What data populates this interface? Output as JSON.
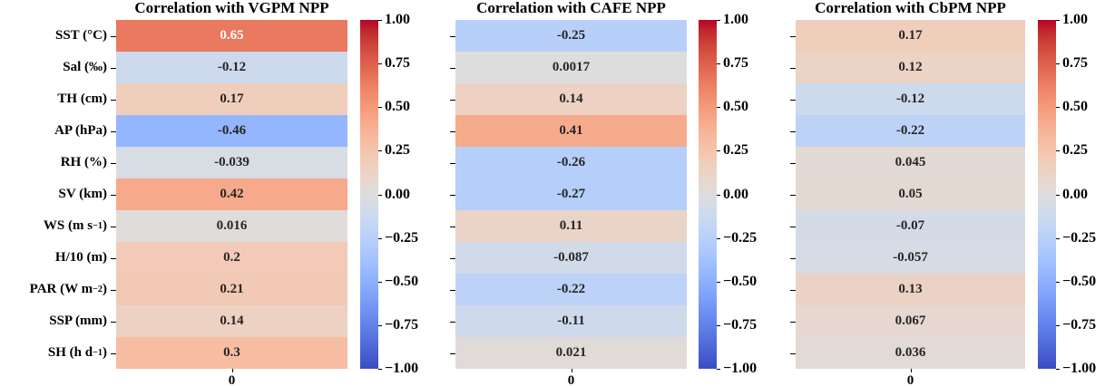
{
  "figure": {
    "background": "#ffffff",
    "text_color": "#000000",
    "annotation_dark_text": "#262626",
    "annotation_light_text": "#ffffff"
  },
  "shared": {
    "row_labels": [
      "SST (°C)",
      "Sal (‰)",
      "TH (cm)",
      "AP (hPa)",
      "RH (%)",
      "SV (km)",
      "WS (m s^{−1})",
      "H/10 (m)",
      "PAR (W m^{−2})",
      "SSP (mm)",
      "SH (h d^{−1})"
    ],
    "x_tick_label": "0",
    "colorbar_ticks": [
      "1.00",
      "0.75",
      "0.50",
      "0.25",
      "0.00",
      "−0.25",
      "−0.50",
      "−0.75",
      "−1.00"
    ],
    "colormap": "coolwarm",
    "vmin": -1,
    "vmax": 1
  },
  "chart_data": [
    {
      "type": "heatmap",
      "title": "Correlation with VGPM NPP",
      "rows": [
        "SST (°C)",
        "Sal (‰)",
        "TH (cm)",
        "AP (hPa)",
        "RH (%)",
        "SV (km)",
        "WS (m s⁻¹)",
        "H/10 (m)",
        "PAR (W m⁻²)",
        "SSP (mm)",
        "SH (h d⁻¹)"
      ],
      "x_ticks": [
        "0"
      ],
      "values": [
        0.65,
        -0.12,
        0.17,
        -0.46,
        -0.039,
        0.42,
        0.016,
        0.2,
        0.21,
        0.14,
        0.3
      ],
      "cell_labels": [
        "0.65",
        "-0.12",
        "0.17",
        "-0.46",
        "-0.039",
        "0.42",
        "0.016",
        "0.2",
        "0.21",
        "0.14",
        "0.3"
      ],
      "vmin": -1,
      "vmax": 1,
      "colormap": "coolwarm",
      "legend_position": "right"
    },
    {
      "type": "heatmap",
      "title": "Correlation with CAFE NPP",
      "rows": [
        "SST (°C)",
        "Sal (‰)",
        "TH (cm)",
        "AP (hPa)",
        "RH (%)",
        "SV (km)",
        "WS (m s⁻¹)",
        "H/10 (m)",
        "PAR (W m⁻²)",
        "SSP (mm)",
        "SH (h d⁻¹)"
      ],
      "x_ticks": [
        "0"
      ],
      "values": [
        -0.25,
        0.0017,
        0.14,
        0.41,
        -0.26,
        -0.27,
        0.11,
        -0.087,
        -0.22,
        -0.11,
        0.021
      ],
      "cell_labels": [
        "-0.25",
        "0.0017",
        "0.14",
        "0.41",
        "-0.26",
        "-0.27",
        "0.11",
        "-0.087",
        "-0.22",
        "-0.11",
        "0.021"
      ],
      "vmin": -1,
      "vmax": 1,
      "colormap": "coolwarm",
      "legend_position": "right"
    },
    {
      "type": "heatmap",
      "title": "Correlation with CbPM NPP",
      "rows": [
        "SST (°C)",
        "Sal (‰)",
        "TH (cm)",
        "AP (hPa)",
        "RH (%)",
        "SV (km)",
        "WS (m s⁻¹)",
        "H/10 (m)",
        "PAR (W m⁻²)",
        "SSP (mm)",
        "SH (h d⁻¹)"
      ],
      "x_ticks": [
        "0"
      ],
      "values": [
        0.17,
        0.12,
        -0.12,
        -0.22,
        0.045,
        0.05,
        -0.07,
        -0.057,
        0.13,
        0.067,
        0.036
      ],
      "cell_labels": [
        "0.17",
        "0.12",
        "-0.12",
        "-0.22",
        "0.045",
        "0.05",
        "-0.07",
        "-0.057",
        "0.13",
        "0.067",
        "0.036"
      ],
      "vmin": -1,
      "vmax": 1,
      "colormap": "coolwarm",
      "legend_position": "right"
    }
  ]
}
